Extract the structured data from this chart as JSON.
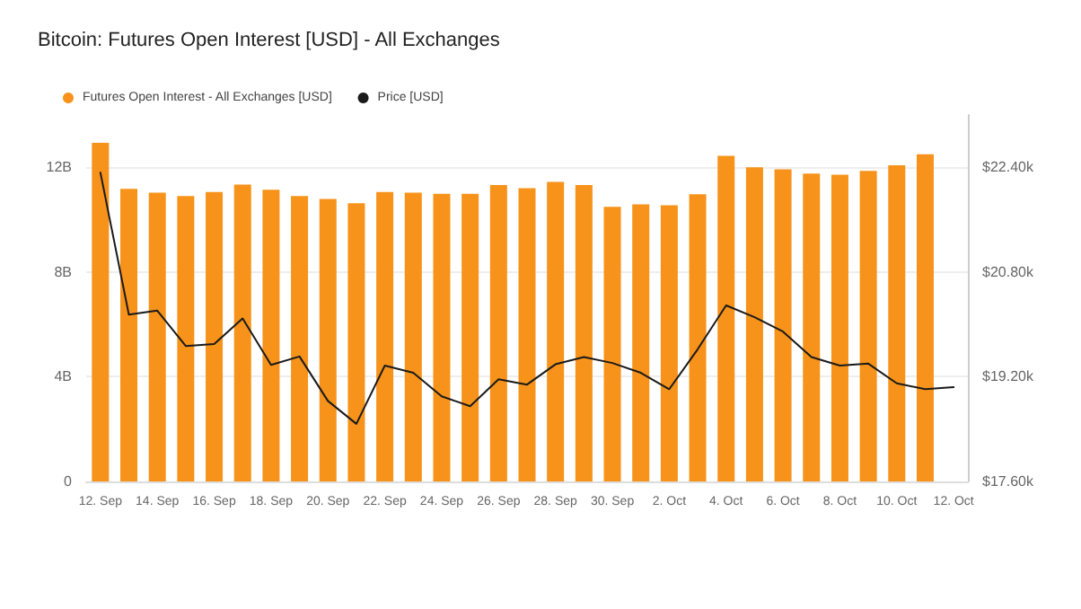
{
  "chart_data": {
    "type": "bar",
    "title": "Bitcoin: Futures Open Interest [USD] - All Exchanges",
    "categories": [
      "12. Sep",
      null,
      "14. Sep",
      null,
      "16. Sep",
      null,
      "18. Sep",
      null,
      "20. Sep",
      null,
      "22. Sep",
      null,
      "24. Sep",
      null,
      "26. Sep",
      null,
      "28. Sep",
      null,
      "30. Sep",
      null,
      "2. Oct",
      null,
      "4. Oct",
      null,
      "6. Oct",
      null,
      "8. Oct",
      null,
      "10. Oct",
      null,
      "12. Oct"
    ],
    "series": [
      {
        "name": "Futures Open Interest - All Exchanges [USD]",
        "color": "#f7931a",
        "values": [
          12.94,
          11.18,
          11.03,
          10.9,
          11.06,
          11.34,
          11.14,
          10.9,
          10.79,
          10.63,
          11.06,
          11.03,
          10.99,
          10.99,
          11.32,
          11.2,
          11.44,
          11.32,
          10.49,
          10.59,
          10.55,
          10.97,
          12.44,
          12.0,
          11.92,
          11.76,
          11.72,
          11.86,
          12.08,
          12.5,
          null
        ]
      },
      {
        "name": "Price [USD]",
        "type": "line",
        "axis": "y2",
        "color": "#1a1a1a",
        "values": [
          22320,
          20150,
          20210,
          19670,
          19700,
          20090,
          19380,
          19510,
          18830,
          18480,
          19370,
          19260,
          18900,
          18750,
          19160,
          19080,
          19390,
          19500,
          19410,
          19260,
          19010,
          19620,
          20290,
          20110,
          19890,
          19500,
          19370,
          19400,
          19100,
          19010,
          19040
        ]
      }
    ],
    "ylim": [
      0,
      14
    ],
    "yticks": [
      0,
      {
        "value": 4,
        "label": "4B"
      },
      {
        "value": 8,
        "label": "8B"
      },
      {
        "value": 12,
        "label": "12B"
      }
    ],
    "y2lim": [
      17600,
      23200
    ],
    "y2ticks": [
      {
        "value": 17600,
        "label": "$17.60k"
      },
      {
        "value": 19200,
        "label": "$19.20k"
      },
      {
        "value": 20800,
        "label": "$20.80k"
      },
      {
        "value": 22400,
        "label": "$22.40k"
      }
    ],
    "grid": "y",
    "legend": "top left",
    "marker": "none",
    "line_style": "solid"
  }
}
